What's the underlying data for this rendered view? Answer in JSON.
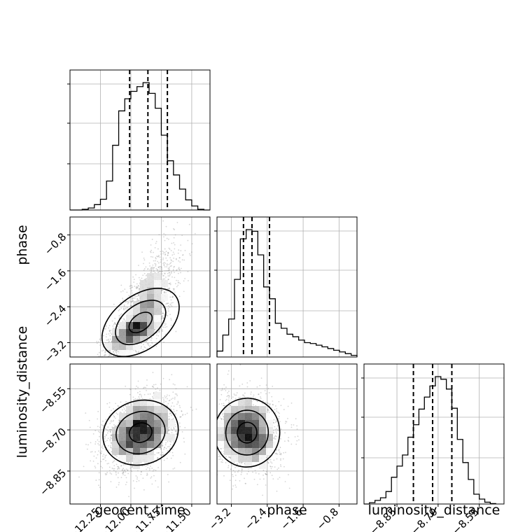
{
  "chart_data": {
    "type": "corner",
    "parameters": [
      "geocent_time",
      "phase",
      "luminosity_distance"
    ],
    "ranges": {
      "geocent_time": [
        -12.5,
        -11.35
      ],
      "phase": [
        -3.52,
        -0.4
      ],
      "luminosity_distance": [
        -8.97,
        -8.46
      ]
    },
    "ticks": {
      "geocent_time": [
        -12.25,
        -12.0,
        -11.75,
        -11.5
      ],
      "phase": [
        -3.2,
        -2.4,
        -1.6,
        -0.8
      ],
      "luminosity_distance": [
        -8.85,
        -8.7,
        -8.55
      ]
    },
    "tick_labels": {
      "geocent_time": [
        "−12.25",
        "−12.00",
        "−11.75",
        "−11.50"
      ],
      "phase": [
        "−3.2",
        "−2.4",
        "−1.6",
        "−0.8"
      ],
      "luminosity_distance": [
        "−8.85",
        "−8.70",
        "−8.55"
      ]
    },
    "quantiles": {
      "geocent_time": [
        -12.01,
        -11.86,
        -11.7
      ],
      "phase": [
        -2.93,
        -2.74,
        -2.35
      ],
      "luminosity_distance": [
        -8.79,
        -8.72,
        -8.65
      ]
    },
    "histograms": {
      "geocent_time": {
        "edges": [
          -12.5,
          -12.45,
          -12.4,
          -12.35,
          -12.3,
          -12.25,
          -12.2,
          -12.15,
          -12.1,
          -12.05,
          -12.0,
          -11.95,
          -11.9,
          -11.85,
          -11.8,
          -11.75,
          -11.7,
          -11.65,
          -11.6,
          -11.55,
          -11.5,
          -11.45,
          -11.4,
          -11.35
        ],
        "counts": [
          0,
          0,
          1,
          3,
          8,
          16,
          43,
          96,
          147,
          165,
          176,
          183,
          189,
          173,
          151,
          111,
          73,
          52,
          31,
          15,
          6,
          1,
          0
        ]
      },
      "phase": {
        "edges": [
          -3.52,
          -3.39,
          -3.26,
          -3.13,
          -3.0,
          -2.87,
          -2.74,
          -2.61,
          -2.48,
          -2.35,
          -2.22,
          -2.09,
          -1.96,
          -1.83,
          -1.7,
          -1.57,
          -1.44,
          -1.31,
          -1.18,
          -1.05,
          -0.92,
          -0.79,
          -0.66,
          -0.53,
          -0.4
        ],
        "counts": [
          7,
          26,
          45,
          92,
          140,
          151,
          149,
          121,
          83,
          69,
          40,
          34,
          27,
          24,
          20,
          17,
          16,
          14,
          12,
          10,
          8,
          6,
          4,
          2
        ]
      },
      "luminosity_distance": {
        "edges": [
          -8.97,
          -8.95,
          -8.93,
          -8.91,
          -8.89,
          -8.87,
          -8.85,
          -8.83,
          -8.81,
          -8.79,
          -8.77,
          -8.75,
          -8.73,
          -8.71,
          -8.69,
          -8.67,
          -8.65,
          -8.63,
          -8.61,
          -8.59,
          -8.57,
          -8.55,
          -8.53,
          -8.51,
          -8.49
        ],
        "counts": [
          0,
          3,
          8,
          14,
          28,
          60,
          85,
          110,
          150,
          178,
          213,
          240,
          265,
          286,
          280,
          258,
          215,
          145,
          93,
          55,
          22,
          11,
          4,
          1
        ]
      }
    },
    "densities": [
      {
        "x": "geocent_time",
        "y": "phase",
        "mean": [
          -11.92,
          -2.75
        ],
        "sd": [
          0.14,
          0.4
        ],
        "corr": 0.72,
        "samples": 2600,
        "skew_y": 0.9
      },
      {
        "x": "geocent_time",
        "y": "luminosity_distance",
        "mean": [
          -11.92,
          -8.71
        ],
        "sd": [
          0.14,
          0.065
        ],
        "corr": 0.3,
        "samples": 2600,
        "skew_y": 0
      },
      {
        "x": "phase",
        "y": "luminosity_distance",
        "mean": [
          -2.85,
          -8.71
        ],
        "sd": [
          0.35,
          0.065
        ],
        "corr": -0.1,
        "samples": 2600,
        "skew_y": 0
      }
    ],
    "grid": true,
    "colors": {
      "hist": "#000000",
      "points": "#888888",
      "grid": "#b0b0b0"
    }
  }
}
